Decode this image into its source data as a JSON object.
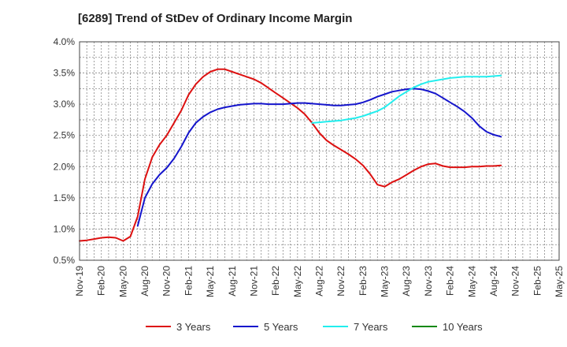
{
  "chart_data": {
    "type": "line",
    "title": "[6289]  Trend of StDev of Ordinary Income Margin",
    "xlabel": "",
    "ylabel": "",
    "x_tick_labels": [
      "Nov-19",
      "Feb-20",
      "May-20",
      "Aug-20",
      "Nov-20",
      "Feb-21",
      "May-21",
      "Aug-21",
      "Nov-21",
      "Feb-22",
      "May-22",
      "Aug-22",
      "Nov-22",
      "Feb-23",
      "May-23",
      "Aug-23",
      "Nov-23",
      "Feb-24",
      "May-24",
      "Aug-24",
      "Nov-24",
      "Feb-25",
      "May-25"
    ],
    "y_tick_labels": [
      "0.5%",
      "1.0%",
      "1.5%",
      "2.0%",
      "2.5%",
      "3.0%",
      "3.5%",
      "4.0%"
    ],
    "ylim": [
      0.5,
      4.0
    ],
    "x_range_months": [
      0,
      66
    ],
    "grid": true,
    "legend_placement": "bottom",
    "series": [
      {
        "name": "3 Years",
        "color": "#dd1111",
        "points": [
          [
            0,
            0.81
          ],
          [
            1,
            0.82
          ],
          [
            2,
            0.84
          ],
          [
            3,
            0.86
          ],
          [
            4,
            0.87
          ],
          [
            5,
            0.86
          ],
          [
            6,
            0.81
          ],
          [
            7,
            0.88
          ],
          [
            8,
            1.2
          ],
          [
            9,
            1.8
          ],
          [
            10,
            2.15
          ],
          [
            11,
            2.35
          ],
          [
            12,
            2.5
          ],
          [
            13,
            2.7
          ],
          [
            14,
            2.9
          ],
          [
            15,
            3.15
          ],
          [
            16,
            3.32
          ],
          [
            17,
            3.44
          ],
          [
            18,
            3.52
          ],
          [
            19,
            3.56
          ],
          [
            20,
            3.56
          ],
          [
            21,
            3.52
          ],
          [
            22,
            3.48
          ],
          [
            23,
            3.44
          ],
          [
            24,
            3.4
          ],
          [
            25,
            3.34
          ],
          [
            26,
            3.26
          ],
          [
            27,
            3.18
          ],
          [
            28,
            3.1
          ],
          [
            29,
            3.02
          ],
          [
            30,
            2.94
          ],
          [
            31,
            2.84
          ],
          [
            32,
            2.7
          ],
          [
            33,
            2.54
          ],
          [
            34,
            2.42
          ],
          [
            35,
            2.34
          ],
          [
            36,
            2.27
          ],
          [
            37,
            2.2
          ],
          [
            38,
            2.12
          ],
          [
            39,
            2.02
          ],
          [
            40,
            1.88
          ],
          [
            41,
            1.71
          ],
          [
            42,
            1.68
          ],
          [
            43,
            1.75
          ],
          [
            44,
            1.8
          ],
          [
            45,
            1.87
          ],
          [
            46,
            1.94
          ],
          [
            47,
            2.0
          ],
          [
            48,
            2.04
          ],
          [
            49,
            2.05
          ],
          [
            50,
            2.01
          ],
          [
            51,
            1.99
          ],
          [
            52,
            1.99
          ],
          [
            53,
            1.99
          ],
          [
            54,
            2.0
          ],
          [
            55,
            2.0
          ],
          [
            56,
            2.01
          ],
          [
            57,
            2.01
          ],
          [
            58,
            2.02
          ]
        ]
      },
      {
        "name": "5 Years",
        "color": "#1515cc",
        "points": [
          [
            8,
            1.05
          ],
          [
            9,
            1.5
          ],
          [
            10,
            1.72
          ],
          [
            11,
            1.87
          ],
          [
            12,
            1.98
          ],
          [
            13,
            2.13
          ],
          [
            14,
            2.32
          ],
          [
            15,
            2.54
          ],
          [
            16,
            2.7
          ],
          [
            17,
            2.8
          ],
          [
            18,
            2.87
          ],
          [
            19,
            2.92
          ],
          [
            20,
            2.95
          ],
          [
            21,
            2.97
          ],
          [
            22,
            2.99
          ],
          [
            23,
            3.0
          ],
          [
            24,
            3.01
          ],
          [
            25,
            3.01
          ],
          [
            26,
            3.0
          ],
          [
            27,
            3.0
          ],
          [
            28,
            3.0
          ],
          [
            29,
            3.01
          ],
          [
            30,
            3.02
          ],
          [
            31,
            3.02
          ],
          [
            32,
            3.01
          ],
          [
            33,
            3.0
          ],
          [
            34,
            2.99
          ],
          [
            35,
            2.98
          ],
          [
            36,
            2.98
          ],
          [
            37,
            2.99
          ],
          [
            38,
            3.0
          ],
          [
            39,
            3.03
          ],
          [
            40,
            3.07
          ],
          [
            41,
            3.12
          ],
          [
            42,
            3.16
          ],
          [
            43,
            3.2
          ],
          [
            44,
            3.22
          ],
          [
            45,
            3.24
          ],
          [
            46,
            3.25
          ],
          [
            47,
            3.24
          ],
          [
            48,
            3.21
          ],
          [
            49,
            3.17
          ],
          [
            50,
            3.1
          ],
          [
            51,
            3.03
          ],
          [
            52,
            2.96
          ],
          [
            53,
            2.88
          ],
          [
            54,
            2.78
          ],
          [
            55,
            2.65
          ],
          [
            56,
            2.56
          ],
          [
            57,
            2.51
          ],
          [
            58,
            2.48
          ]
        ]
      },
      {
        "name": "7 Years",
        "color": "#22eeee",
        "points": [
          [
            32,
            2.7
          ],
          [
            33,
            2.71
          ],
          [
            34,
            2.72
          ],
          [
            35,
            2.73
          ],
          [
            36,
            2.74
          ],
          [
            37,
            2.76
          ],
          [
            38,
            2.78
          ],
          [
            39,
            2.81
          ],
          [
            40,
            2.85
          ],
          [
            41,
            2.89
          ],
          [
            42,
            2.95
          ],
          [
            43,
            3.04
          ],
          [
            44,
            3.13
          ],
          [
            45,
            3.2
          ],
          [
            46,
            3.27
          ],
          [
            47,
            3.32
          ],
          [
            48,
            3.36
          ],
          [
            49,
            3.38
          ],
          [
            50,
            3.4
          ],
          [
            51,
            3.42
          ],
          [
            52,
            3.43
          ],
          [
            53,
            3.44
          ],
          [
            54,
            3.44
          ],
          [
            55,
            3.44
          ],
          [
            56,
            3.44
          ],
          [
            57,
            3.45
          ],
          [
            58,
            3.46
          ]
        ]
      },
      {
        "name": "10 Years",
        "color": "#118811",
        "points": []
      }
    ]
  }
}
